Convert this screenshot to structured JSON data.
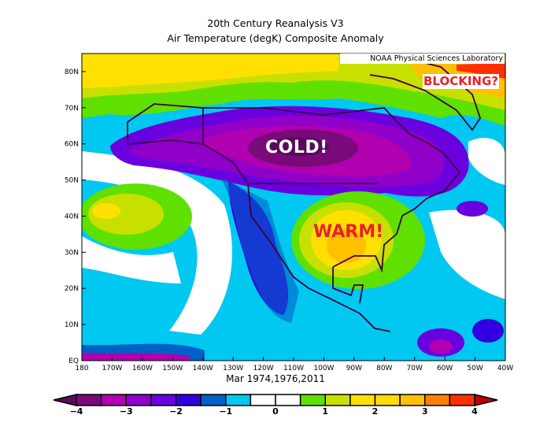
{
  "title": {
    "line1": "20th Century Reanalysis V3",
    "line2": "Air Temperature (degK) Composite Anomaly"
  },
  "credit": "NOAA Physical Sciences Laboratory",
  "annotations": {
    "cold": "COLD!",
    "warm": "WARM!",
    "blocking": "BLOCKING?"
  },
  "map": {
    "x_ticks": [
      "180",
      "170W",
      "160W",
      "150W",
      "140W",
      "130W",
      "120W",
      "110W",
      "100W",
      "90W",
      "80W",
      "70W",
      "60W",
      "50W",
      "40W"
    ],
    "y_ticks": [
      "EQ",
      "10N",
      "20N",
      "30N",
      "40N",
      "50N",
      "60N",
      "70N",
      "80N"
    ],
    "lon_range": [
      -180,
      -40
    ],
    "lat_range": [
      0,
      85
    ]
  },
  "subtitle": "Mar 1974,1976,2011",
  "colorbar": {
    "ticks": [
      "-4",
      "-3",
      "-2",
      "-1",
      "0",
      "1",
      "2",
      "3",
      "4"
    ],
    "levels": [
      -4,
      -3.5,
      -3,
      -2.5,
      -2,
      -1.5,
      -1,
      -0.5,
      0,
      0.5,
      1,
      1.5,
      2,
      2.5,
      3,
      3.5,
      4
    ],
    "colors": [
      "#5a0a5a",
      "#7a0a7a",
      "#b000b0",
      "#9000c8",
      "#6a00e0",
      "#3200e0",
      "#0060c8",
      "#00c8f0",
      "#ffffff",
      "#ffffff",
      "#60e000",
      "#c8e000",
      "#ffe000",
      "#ffdc00",
      "#ffc000",
      "#ff8000",
      "#ff3000",
      "#c00000"
    ]
  }
}
